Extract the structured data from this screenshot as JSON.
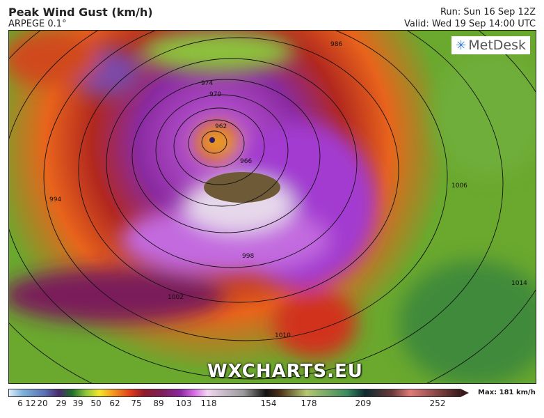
{
  "header": {
    "title": "Peak Wind Gust (km/h)",
    "model": "ARPEGE 0.1°",
    "run": "Run: Sun 16 Sep 12Z",
    "valid": "Valid: Wed 19 Sep 14:00 UTC"
  },
  "map": {
    "logo": "MetDesk",
    "watermark": "WXCHARTS.EU",
    "isobar_labels": [
      "974",
      "970",
      "962",
      "966",
      "986",
      "994",
      "998",
      "1002",
      "1006",
      "1010",
      "1014"
    ]
  },
  "legend": {
    "ticks": [
      "6",
      "12",
      "20",
      "29",
      "39",
      "50",
      "62",
      "75",
      "89",
      "103",
      "118",
      "154",
      "178",
      "209",
      "252"
    ],
    "max_label": "Max: 181 km/h"
  }
}
